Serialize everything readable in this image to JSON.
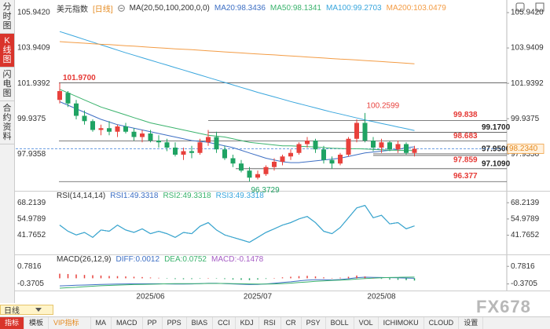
{
  "sidebar": [
    "分时图",
    "K线图",
    "闪电图",
    "合约资料"
  ],
  "toolbar": {
    "period": "日线",
    "tabs": [
      "指标",
      "模板",
      "VIP指标",
      "MA",
      "MACD",
      "PP",
      "PPS",
      "BIAS",
      "CCI",
      "KDJ",
      "RSI",
      "CR",
      "PSY",
      "BOLL",
      "VOL",
      "ICHIMOKU",
      "CLOUD",
      "设置"
    ]
  },
  "watermark": "FX678",
  "chart_data": [
    {
      "type": "candlestick",
      "title": "美元指数",
      "period": "[日线]",
      "indicator": "MA(20,50,100,200,0,0)",
      "categories": [
        null,
        null,
        null,
        null,
        null,
        null,
        null,
        null,
        null,
        null,
        null,
        "2025/06",
        null,
        null,
        null,
        null,
        null,
        null,
        null,
        null,
        null,
        null,
        null,
        null,
        "2025/07",
        null,
        null,
        null,
        null,
        null,
        null,
        null,
        null,
        null,
        null,
        null,
        null,
        null,
        null,
        "2025/08",
        null,
        null,
        null,
        null
      ],
      "candles": [
        [
          101.0,
          101.97,
          100.8,
          101.5
        ],
        [
          101.4,
          101.5,
          100.6,
          100.8
        ],
        [
          100.8,
          101.0,
          99.9,
          100.1
        ],
        [
          100.1,
          100.4,
          99.6,
          99.8
        ],
        [
          99.8,
          99.9,
          99.2,
          99.3
        ],
        [
          99.3,
          99.6,
          99.0,
          99.4
        ],
        [
          99.4,
          99.8,
          99.0,
          99.2
        ],
        [
          99.2,
          99.6,
          98.9,
          99.5
        ],
        [
          99.5,
          99.7,
          99.1,
          99.2
        ],
        [
          99.2,
          99.4,
          98.7,
          98.9
        ],
        [
          98.9,
          99.3,
          98.6,
          99.1
        ],
        [
          99.1,
          99.3,
          98.6,
          98.7
        ],
        [
          98.7,
          99.0,
          98.3,
          98.6
        ],
        [
          98.6,
          98.8,
          98.1,
          98.3
        ],
        [
          98.3,
          98.6,
          97.8,
          97.9
        ],
        [
          97.9,
          98.3,
          97.6,
          98.1
        ],
        [
          98.1,
          98.4,
          97.7,
          98.0
        ],
        [
          98.0,
          98.8,
          97.9,
          98.6
        ],
        [
          98.6,
          99.3,
          98.4,
          98.9
        ],
        [
          98.9,
          99.2,
          98.0,
          98.2
        ],
        [
          98.2,
          98.4,
          97.6,
          97.7
        ],
        [
          97.7,
          97.9,
          97.2,
          97.4
        ],
        [
          97.4,
          97.6,
          96.9,
          97.0
        ],
        [
          97.0,
          97.2,
          96.3729,
          96.6
        ],
        [
          96.6,
          97.0,
          96.5,
          96.8
        ],
        [
          96.8,
          97.3,
          96.7,
          97.2
        ],
        [
          97.2,
          97.7,
          97.0,
          97.5
        ],
        [
          97.5,
          97.9,
          97.3,
          97.8
        ],
        [
          97.8,
          98.2,
          97.6,
          98.0
        ],
        [
          98.0,
          98.6,
          97.9,
          98.5
        ],
        [
          98.5,
          98.9,
          98.3,
          98.7
        ],
        [
          98.7,
          98.8,
          98.0,
          98.2
        ],
        [
          98.2,
          98.4,
          97.4,
          97.6
        ],
        [
          97.6,
          97.8,
          97.1,
          97.4
        ],
        [
          97.4,
          98.0,
          97.3,
          97.9
        ],
        [
          97.9,
          98.9,
          97.8,
          98.8
        ],
        [
          98.8,
          99.9,
          98.6,
          99.7
        ],
        [
          99.7,
          100.2599,
          98.6,
          98.7
        ],
        [
          98.7,
          98.9,
          98.1,
          98.3
        ],
        [
          98.3,
          98.8,
          98.0,
          98.6
        ],
        [
          98.6,
          98.7,
          98.1,
          98.2
        ],
        [
          98.2,
          98.7,
          98.0,
          98.5
        ],
        [
          98.5,
          98.6,
          97.9,
          98.0
        ],
        [
          98.0,
          98.4,
          97.8,
          98.234
        ]
      ],
      "up_color": "#e8413c",
      "down_color": "#1fa363",
      "ylim": [
        95.9,
        106.3
      ],
      "yticks": [
        {
          "value": 105.942,
          "label": "105.9420"
        },
        103.9409,
        101.9392,
        99.9375,
        97.9358
      ],
      "last_price": {
        "value": 98.234,
        "label": "98.2340"
      },
      "levels": [
        {
          "value": 101.97,
          "label": "101.9700",
          "color": "#e53935"
        },
        {
          "value": 99.838,
          "color": "#e53935"
        },
        {
          "value": 99.17,
          "label": "99.1700",
          "color": "#222222"
        },
        {
          "value": 98.683,
          "color": "#e53935"
        },
        {
          "value": 97.95,
          "label": "97.9500",
          "color": "#222222"
        },
        {
          "value": 97.859,
          "color": "#e53935"
        },
        {
          "value": 97.109,
          "label": "97.1090",
          "color": "#222222"
        },
        {
          "value": 96.377,
          "color": "#e53935"
        }
      ],
      "ma_series": [
        {
          "name": "MA20:98.3436",
          "color": "#3d6fc4",
          "values": [
            100.9,
            100.7,
            100.5,
            100.3,
            100.1,
            99.9,
            99.75,
            99.6,
            99.5,
            99.4,
            99.3,
            99.2,
            99.1,
            99.0,
            98.9,
            98.8,
            98.7,
            98.65,
            98.6,
            98.5,
            98.4,
            98.3,
            98.15,
            98.0,
            97.85,
            97.7,
            97.6,
            97.5,
            97.45,
            97.45,
            97.5,
            97.55,
            97.6,
            97.65,
            97.7,
            97.8,
            97.9,
            98.0,
            98.05,
            98.1,
            98.15,
            98.2,
            98.3,
            98.3436
          ]
        },
        {
          "name": "MA50:98.1341",
          "color": "#3bb36d",
          "values": [
            101.6,
            101.4,
            101.2,
            101.0,
            100.8,
            100.6,
            100.45,
            100.3,
            100.15,
            100.0,
            99.85,
            99.7,
            99.6,
            99.5,
            99.4,
            99.3,
            99.2,
            99.1,
            99.0,
            98.95,
            98.9,
            98.8,
            98.7,
            98.6,
            98.55,
            98.5,
            98.45,
            98.4,
            98.4,
            98.38,
            98.36,
            98.34,
            98.3,
            98.27,
            98.25,
            98.24,
            98.24,
            98.22,
            98.2,
            98.18,
            98.16,
            98.15,
            98.14,
            98.1341
          ]
        },
        {
          "name": "MA100:99.2703",
          "color": "#39a6dd",
          "values": [
            104.87,
            104.72,
            104.57,
            104.42,
            104.27,
            104.12,
            103.97,
            103.82,
            103.67,
            103.53,
            103.39,
            103.25,
            103.11,
            102.97,
            102.83,
            102.69,
            102.55,
            102.41,
            102.27,
            102.13,
            101.99,
            101.85,
            101.71,
            101.57,
            101.43,
            101.3,
            101.17,
            101.04,
            100.91,
            100.79,
            100.67,
            100.55,
            100.43,
            100.31,
            100.2,
            100.09,
            99.98,
            99.87,
            99.77,
            99.67,
            99.57,
            99.47,
            99.37,
            99.2703
          ]
        },
        {
          "name": "MA200:103.0479",
          "color": "#f39c45",
          "values": [
            104.3,
            104.27,
            104.24,
            104.21,
            104.18,
            104.15,
            104.13,
            104.1,
            104.07,
            104.04,
            104.01,
            103.98,
            103.95,
            103.92,
            103.89,
            103.87,
            103.84,
            103.81,
            103.78,
            103.75,
            103.72,
            103.69,
            103.66,
            103.63,
            103.6,
            103.57,
            103.55,
            103.52,
            103.49,
            103.46,
            103.43,
            103.4,
            103.37,
            103.34,
            103.31,
            103.29,
            103.26,
            103.23,
            103.2,
            103.17,
            103.14,
            103.11,
            103.08,
            103.0479
          ]
        }
      ]
    },
    {
      "type": "line",
      "title": "RSI(14,14,14)",
      "ylim": [
        33.8,
        76
      ],
      "yticks": [
        68.2139,
        54.9789,
        41.7652
      ],
      "series": [
        {
          "name": "RSI1:49.3318",
          "color": "#3d6fc4",
          "values": [
            50,
            45,
            42,
            44,
            40,
            46,
            45,
            50,
            46,
            44,
            47,
            43,
            45,
            43,
            40,
            44,
            43,
            49,
            52,
            46,
            42,
            40,
            38,
            36,
            40,
            44,
            47,
            50,
            52,
            55,
            57,
            52,
            45,
            43,
            48,
            56,
            64,
            66,
            56,
            58,
            51,
            52,
            47,
            49.3318
          ]
        },
        {
          "name": "RSI2:49.3318",
          "color": "#3bb36d",
          "values": [
            50,
            45,
            42,
            44,
            40,
            46,
            45,
            50,
            46,
            44,
            47,
            43,
            45,
            43,
            40,
            44,
            43,
            49,
            52,
            46,
            42,
            40,
            38,
            36,
            40,
            44,
            47,
            50,
            52,
            55,
            57,
            52,
            45,
            43,
            48,
            56,
            64,
            66,
            56,
            58,
            51,
            52,
            47,
            49.3318
          ]
        },
        {
          "name": "RSI3:49.3318",
          "color": "#39a6dd",
          "values": [
            50,
            45,
            42,
            44,
            40,
            46,
            45,
            50,
            46,
            44,
            47,
            43,
            45,
            43,
            40,
            44,
            43,
            49,
            52,
            46,
            42,
            40,
            38,
            36,
            40,
            44,
            47,
            50,
            52,
            55,
            57,
            52,
            45,
            43,
            48,
            56,
            64,
            66,
            56,
            58,
            51,
            52,
            47,
            49.3318
          ]
        }
      ]
    },
    {
      "type": "combo",
      "title": "MACD(26,12,9)",
      "ylim": [
        -0.7,
        1.36
      ],
      "yticks": [
        0.7816,
        -0.3705
      ],
      "up_color": "#e8413c",
      "down_color": "#1fa363",
      "series": [
        {
          "name": "DIFF:0.0012",
          "color": "#3d6fc4",
          "values": [
            -0.5,
            -0.48,
            -0.46,
            -0.44,
            -0.42,
            -0.4,
            -0.39,
            -0.38,
            -0.37,
            -0.36,
            -0.36,
            -0.36,
            -0.36,
            -0.37,
            -0.38,
            -0.38,
            -0.37,
            -0.35,
            -0.33,
            -0.33,
            -0.35,
            -0.37,
            -0.39,
            -0.41,
            -0.4,
            -0.37,
            -0.33,
            -0.28,
            -0.23,
            -0.17,
            -0.12,
            -0.1,
            -0.1,
            -0.11,
            -0.08,
            -0.03,
            0.04,
            0.07,
            0.06,
            0.05,
            0.04,
            0.03,
            0.015,
            0.0012
          ]
        },
        {
          "name": "DEA:0.0752",
          "color": "#3bb36d",
          "values": [
            -0.65,
            -0.62,
            -0.59,
            -0.55,
            -0.52,
            -0.49,
            -0.47,
            -0.45,
            -0.43,
            -0.41,
            -0.4,
            -0.39,
            -0.38,
            -0.36,
            -0.35,
            -0.35,
            -0.35,
            -0.35,
            -0.34,
            -0.34,
            -0.34,
            -0.35,
            -0.36,
            -0.37,
            -0.38,
            -0.38,
            -0.37,
            -0.35,
            -0.32,
            -0.28,
            -0.24,
            -0.2,
            -0.17,
            -0.14,
            -0.12,
            -0.09,
            -0.05,
            -0.02,
            0.01,
            0.03,
            0.05,
            0.06,
            0.07,
            0.0752
          ]
        },
        {
          "name": "MACD:-0.1478",
          "color": "#a55cc4",
          "type": "bar",
          "values": [
            0.3,
            0.28,
            0.25,
            0.22,
            0.2,
            0.18,
            0.15,
            0.14,
            0.12,
            0.1,
            0.08,
            0.05,
            0.03,
            -0.02,
            -0.05,
            -0.06,
            -0.05,
            -0.02,
            0.02,
            -0.01,
            -0.05,
            -0.08,
            -0.1,
            -0.12,
            -0.08,
            -0.04,
            0.02,
            0.06,
            0.1,
            0.14,
            0.16,
            0.12,
            0.06,
            0.02,
            0.04,
            0.1,
            0.18,
            0.12,
            0.02,
            -0.04,
            -0.08,
            -0.1,
            -0.12,
            -0.1478
          ]
        }
      ]
    }
  ]
}
